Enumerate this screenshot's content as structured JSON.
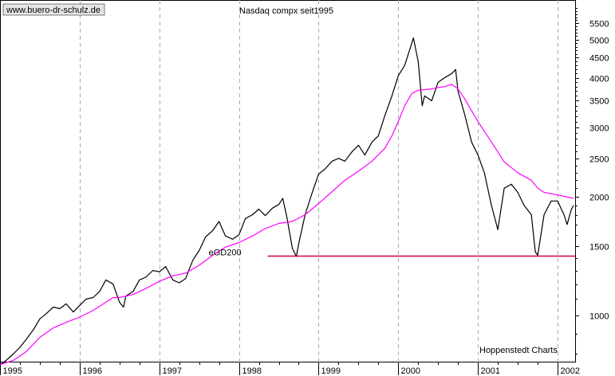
{
  "watermark": "www.buero-dr-schulz.de",
  "source": "Hoppenstedt Charts",
  "chart_data": {
    "type": "line",
    "title": "Nasdaq compx seit1995",
    "xlabel": "",
    "ylabel": "",
    "y_scale": "log",
    "ylim": [
      760,
      6300
    ],
    "xlim": [
      1995.0,
      2002.22
    ],
    "x_ticks": [
      {
        "label": "1995",
        "x": 1995.0
      },
      {
        "label": "1996",
        "x": 1996.0
      },
      {
        "label": "1997",
        "x": 1997.0
      },
      {
        "label": "1998",
        "x": 1998.0
      },
      {
        "label": "1999",
        "x": 1999.0
      },
      {
        "label": "2000",
        "x": 2000.0
      },
      {
        "label": "2001",
        "x": 2001.0
      },
      {
        "label": "2002",
        "x": 2002.0
      }
    ],
    "y_ticks": [
      1000,
      1500,
      2000,
      2500,
      3000,
      3500,
      4000,
      4500,
      5000,
      5500
    ],
    "grid": {
      "vertical": true,
      "horizontal": false
    },
    "series": [
      {
        "name": "",
        "color": "#000000",
        "points": [
          [
            1995.0,
            750
          ],
          [
            1995.08,
            770
          ],
          [
            1995.17,
            800
          ],
          [
            1995.25,
            830
          ],
          [
            1995.33,
            870
          ],
          [
            1995.42,
            920
          ],
          [
            1995.5,
            980
          ],
          [
            1995.58,
            1010
          ],
          [
            1995.67,
            1050
          ],
          [
            1995.75,
            1040
          ],
          [
            1995.83,
            1070
          ],
          [
            1995.92,
            1020
          ],
          [
            1996.0,
            1060
          ],
          [
            1996.08,
            1100
          ],
          [
            1996.17,
            1110
          ],
          [
            1996.25,
            1150
          ],
          [
            1996.33,
            1230
          ],
          [
            1996.42,
            1200
          ],
          [
            1996.5,
            1080
          ],
          [
            1996.55,
            1050
          ],
          [
            1996.58,
            1120
          ],
          [
            1996.67,
            1150
          ],
          [
            1996.75,
            1230
          ],
          [
            1996.83,
            1250
          ],
          [
            1996.92,
            1300
          ],
          [
            1997.0,
            1290
          ],
          [
            1997.08,
            1330
          ],
          [
            1997.17,
            1230
          ],
          [
            1997.25,
            1210
          ],
          [
            1997.33,
            1240
          ],
          [
            1997.42,
            1380
          ],
          [
            1997.5,
            1460
          ],
          [
            1997.58,
            1580
          ],
          [
            1997.67,
            1640
          ],
          [
            1997.75,
            1730
          ],
          [
            1997.83,
            1590
          ],
          [
            1997.92,
            1560
          ],
          [
            1998.0,
            1600
          ],
          [
            1998.08,
            1760
          ],
          [
            1998.17,
            1800
          ],
          [
            1998.25,
            1860
          ],
          [
            1998.33,
            1790
          ],
          [
            1998.42,
            1870
          ],
          [
            1998.5,
            1910
          ],
          [
            1998.55,
            1980
          ],
          [
            1998.6,
            1780
          ],
          [
            1998.67,
            1480
          ],
          [
            1998.72,
            1410
          ],
          [
            1998.75,
            1520
          ],
          [
            1998.83,
            1800
          ],
          [
            1998.92,
            2050
          ],
          [
            1999.0,
            2280
          ],
          [
            1999.08,
            2350
          ],
          [
            1999.17,
            2460
          ],
          [
            1999.25,
            2500
          ],
          [
            1999.33,
            2460
          ],
          [
            1999.42,
            2600
          ],
          [
            1999.5,
            2700
          ],
          [
            1999.58,
            2550
          ],
          [
            1999.67,
            2750
          ],
          [
            1999.75,
            2850
          ],
          [
            1999.83,
            3200
          ],
          [
            1999.92,
            3600
          ],
          [
            2000.0,
            4050
          ],
          [
            2000.08,
            4300
          ],
          [
            2000.17,
            4900
          ],
          [
            2000.19,
            5050
          ],
          [
            2000.25,
            4400
          ],
          [
            2000.3,
            3400
          ],
          [
            2000.33,
            3600
          ],
          [
            2000.42,
            3500
          ],
          [
            2000.5,
            3900
          ],
          [
            2000.58,
            4000
          ],
          [
            2000.67,
            4100
          ],
          [
            2000.72,
            4200
          ],
          [
            2000.75,
            3700
          ],
          [
            2000.83,
            3250
          ],
          [
            2000.92,
            2750
          ],
          [
            2001.0,
            2550
          ],
          [
            2001.08,
            2300
          ],
          [
            2001.17,
            1900
          ],
          [
            2001.25,
            1650
          ],
          [
            2001.33,
            2100
          ],
          [
            2001.42,
            2150
          ],
          [
            2001.5,
            2050
          ],
          [
            2001.58,
            1900
          ],
          [
            2001.67,
            1800
          ],
          [
            2001.72,
            1450
          ],
          [
            2001.75,
            1420
          ],
          [
            2001.83,
            1800
          ],
          [
            2001.92,
            1950
          ],
          [
            2002.0,
            1950
          ],
          [
            2002.08,
            1800
          ],
          [
            2002.12,
            1700
          ],
          [
            2002.17,
            1850
          ],
          [
            2002.2,
            1900
          ]
        ]
      },
      {
        "name": "eGD200",
        "color": "#ff00ff",
        "points": [
          [
            1995.0,
            750
          ],
          [
            1995.17,
            770
          ],
          [
            1995.33,
            810
          ],
          [
            1995.5,
            880
          ],
          [
            1995.67,
            930
          ],
          [
            1995.83,
            960
          ],
          [
            1996.0,
            990
          ],
          [
            1996.17,
            1030
          ],
          [
            1996.33,
            1080
          ],
          [
            1996.42,
            1110
          ],
          [
            1996.5,
            1110
          ],
          [
            1996.67,
            1130
          ],
          [
            1996.83,
            1170
          ],
          [
            1997.0,
            1220
          ],
          [
            1997.17,
            1260
          ],
          [
            1997.33,
            1280
          ],
          [
            1997.5,
            1340
          ],
          [
            1997.67,
            1420
          ],
          [
            1997.83,
            1490
          ],
          [
            1998.0,
            1530
          ],
          [
            1998.17,
            1590
          ],
          [
            1998.33,
            1660
          ],
          [
            1998.5,
            1710
          ],
          [
            1998.67,
            1730
          ],
          [
            1998.83,
            1800
          ],
          [
            1999.0,
            1920
          ],
          [
            1999.17,
            2060
          ],
          [
            1999.33,
            2200
          ],
          [
            1999.5,
            2320
          ],
          [
            1999.67,
            2460
          ],
          [
            1999.83,
            2650
          ],
          [
            1999.92,
            2850
          ],
          [
            2000.0,
            3100
          ],
          [
            2000.08,
            3400
          ],
          [
            2000.17,
            3650
          ],
          [
            2000.25,
            3720
          ],
          [
            2000.42,
            3750
          ],
          [
            2000.5,
            3780
          ],
          [
            2000.58,
            3800
          ],
          [
            2000.67,
            3850
          ],
          [
            2000.75,
            3750
          ],
          [
            2000.83,
            3550
          ],
          [
            2000.92,
            3300
          ],
          [
            2001.0,
            3100
          ],
          [
            2001.17,
            2750
          ],
          [
            2001.33,
            2450
          ],
          [
            2001.5,
            2300
          ],
          [
            2001.67,
            2200
          ],
          [
            2001.75,
            2100
          ],
          [
            2001.83,
            2050
          ],
          [
            2002.0,
            2020
          ],
          [
            2002.2,
            1980
          ]
        ]
      }
    ],
    "annotations": [
      {
        "text": "eGD200",
        "x": 1997.62,
        "y": 1420,
        "color": "#ff00ff"
      },
      {
        "type": "hline",
        "y": 1415,
        "x_start": 1998.36,
        "x_end": 2002.22,
        "color": "#d0003a"
      }
    ]
  }
}
